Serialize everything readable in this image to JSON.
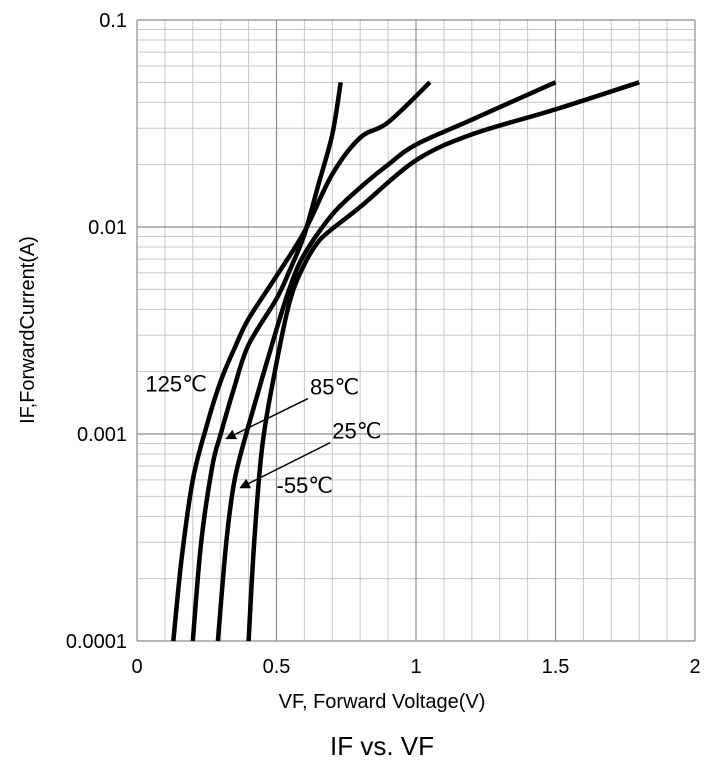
{
  "chart_data": {
    "type": "line",
    "title": "IF vs. VF",
    "xlabel": "VF, Forward Voltage(V)",
    "ylabel": "IF,ForwardCurrent(A)",
    "xlim": [
      0,
      2
    ],
    "ylim": [
      0.0001,
      0.1
    ],
    "y_scale": "log",
    "grid": true,
    "x_ticks": [
      {
        "value": 0,
        "label": "0"
      },
      {
        "value": 0.5,
        "label": "0.5"
      },
      {
        "value": 1,
        "label": "1"
      },
      {
        "value": 1.5,
        "label": "1.5"
      },
      {
        "value": 2,
        "label": "2"
      }
    ],
    "y_ticks": [
      {
        "value": 0.0001,
        "label": "0.0001"
      },
      {
        "value": 0.001,
        "label": "0.001"
      },
      {
        "value": 0.01,
        "label": "0.01"
      },
      {
        "value": 0.1,
        "label": "0.1"
      }
    ],
    "series": [
      {
        "name": "125℃",
        "color": "#000000",
        "points": [
          [
            0.13,
            0.0001
          ],
          [
            0.16,
            0.00025
          ],
          [
            0.2,
            0.0006
          ],
          [
            0.25,
            0.0011
          ],
          [
            0.3,
            0.0018
          ],
          [
            0.35,
            0.0026
          ],
          [
            0.4,
            0.0036
          ],
          [
            0.5,
            0.0058
          ],
          [
            0.6,
            0.0095
          ],
          [
            0.7,
            0.018
          ],
          [
            0.8,
            0.027
          ],
          [
            0.9,
            0.032
          ],
          [
            1.05,
            0.05
          ]
        ]
      },
      {
        "name": "85℃",
        "color": "#000000",
        "points": [
          [
            0.2,
            0.0001
          ],
          [
            0.23,
            0.0003
          ],
          [
            0.27,
            0.0007
          ],
          [
            0.3,
            0.001
          ],
          [
            0.35,
            0.0017
          ],
          [
            0.4,
            0.0027
          ],
          [
            0.5,
            0.0045
          ],
          [
            0.55,
            0.0063
          ],
          [
            0.6,
            0.0092
          ],
          [
            0.65,
            0.016
          ],
          [
            0.7,
            0.028
          ],
          [
            0.73,
            0.05
          ]
        ]
      },
      {
        "name": "25℃",
        "color": "#000000",
        "points": [
          [
            0.29,
            0.0001
          ],
          [
            0.32,
            0.0003
          ],
          [
            0.35,
            0.0006
          ],
          [
            0.4,
            0.0011
          ],
          [
            0.5,
            0.0032
          ],
          [
            0.55,
            0.0052
          ],
          [
            0.6,
            0.0074
          ],
          [
            0.7,
            0.0115
          ],
          [
            0.8,
            0.0155
          ],
          [
            0.9,
            0.02
          ],
          [
            1,
            0.025
          ],
          [
            1.2,
            0.033
          ],
          [
            1.5,
            0.05
          ]
        ]
      },
      {
        "name": "-55℃",
        "color": "#000000",
        "points": [
          [
            0.4,
            0.0001
          ],
          [
            0.42,
            0.0003
          ],
          [
            0.45,
            0.0009
          ],
          [
            0.5,
            0.0022
          ],
          [
            0.55,
            0.0045
          ],
          [
            0.6,
            0.0066
          ],
          [
            0.65,
            0.0085
          ],
          [
            0.7,
            0.0098
          ],
          [
            0.8,
            0.0125
          ],
          [
            1,
            0.021
          ],
          [
            1.2,
            0.028
          ],
          [
            1.5,
            0.037
          ],
          [
            1.8,
            0.05
          ]
        ]
      }
    ],
    "annotations": [
      {
        "text": "125℃",
        "x": 0.03,
        "y": 0.0016
      },
      {
        "text": "85℃",
        "x": 0.62,
        "y": 0.00155,
        "arrow_to": {
          "x": 0.32,
          "y": 0.00095
        }
      },
      {
        "text": "25℃",
        "x": 0.7,
        "y": 0.00095,
        "arrow_to": {
          "x": 0.37,
          "y": 0.00055
        }
      },
      {
        "text": "-55℃",
        "x": 0.5,
        "y": 0.00052
      }
    ]
  }
}
